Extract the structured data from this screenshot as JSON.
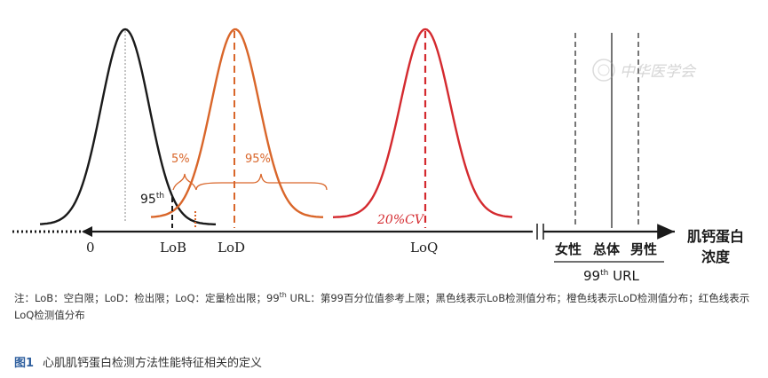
{
  "figure": {
    "curves": [
      {
        "name": "LoB",
        "color": "#1a1a1a",
        "peak_label": ""
      },
      {
        "name": "LoD",
        "color": "#d9662a",
        "peak_label": ""
      },
      {
        "name": "LoQ",
        "color": "#d42a2f",
        "peak_label": "20%CV"
      }
    ],
    "axis": {
      "labels": {
        "zero": "0",
        "lob": "LoB",
        "lod": "LoD",
        "loq": "LoQ"
      },
      "end_label_line1": "肌钙蛋白",
      "end_label_line2": "浓度"
    },
    "annotations": {
      "pct_left": "5%",
      "pct_right": "95%",
      "percentile_base": "95",
      "percentile_sup": "th"
    },
    "url_block": {
      "female": "女性",
      "overall": "总体",
      "male": "男性",
      "url_base": "99",
      "url_sup": "th",
      "url_suffix": " URL"
    },
    "watermark": "中华医学会"
  },
  "note": {
    "part1": "注：LoB：空白限；LoD：检出限；LoQ：定量检出限；99",
    "sup": "th",
    "part2": " URL：第99百分位值参考上限；黑色线表示LoB检测值分布；橙色线表示LoD检测值分布；红色线表示LoQ检测值分布"
  },
  "caption": {
    "label": "图1",
    "text": "心肌肌钙蛋白检测方法性能特征相关的定义"
  },
  "colors": {
    "black": "#1a1a1a",
    "orange": "#d9662a",
    "red": "#d42a2f",
    "caption_blue": "#2f5f9e"
  }
}
